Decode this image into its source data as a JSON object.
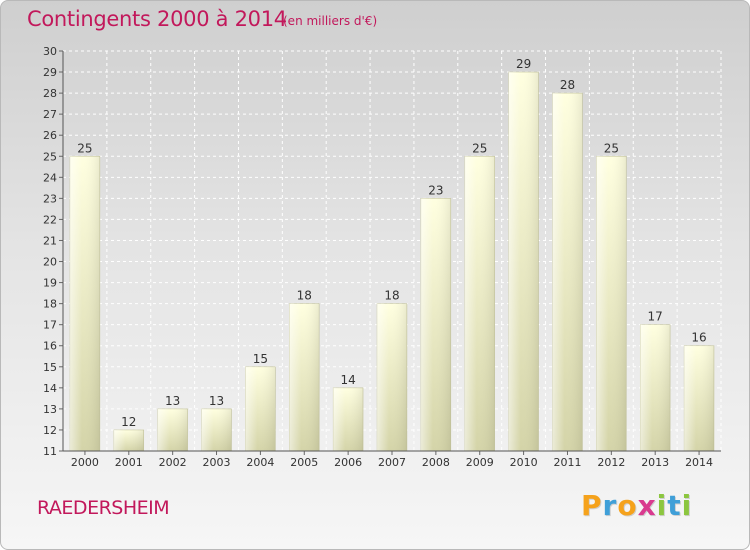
{
  "header": {
    "title": "Contingents 2000 à 2014",
    "subtitle": "(en milliers d'€)"
  },
  "footer": {
    "place": "RAEDERSHEIM",
    "logo_letters": [
      "P",
      "r",
      "o",
      "x",
      "i",
      "t",
      "i"
    ],
    "logo_colors": [
      "#f5a21c",
      "#3f9fd8",
      "#f5a21c",
      "#d93a8f",
      "#8cc63f",
      "#3f9fd8",
      "#8cc63f"
    ]
  },
  "chart_data": {
    "type": "bar",
    "title": "Contingents 2000 à 2014",
    "subtitle": "(en milliers d'€)",
    "categories": [
      "2000",
      "2001",
      "2002",
      "2003",
      "2004",
      "2005",
      "2006",
      "2007",
      "2008",
      "2009",
      "2010",
      "2011",
      "2012",
      "2013",
      "2014"
    ],
    "values": [
      25,
      12,
      13,
      13,
      15,
      18,
      14,
      18,
      23,
      25,
      29,
      28,
      25,
      17,
      16
    ],
    "ylim": [
      11,
      30
    ],
    "yticks": [
      "11",
      "12",
      "13",
      "14",
      "15",
      "16",
      "17",
      "18",
      "19",
      "20",
      "21",
      "22",
      "23",
      "24",
      "25",
      "26",
      "27",
      "28",
      "29",
      "30"
    ],
    "grid": true,
    "bar_color": "#f2f2c4"
  }
}
